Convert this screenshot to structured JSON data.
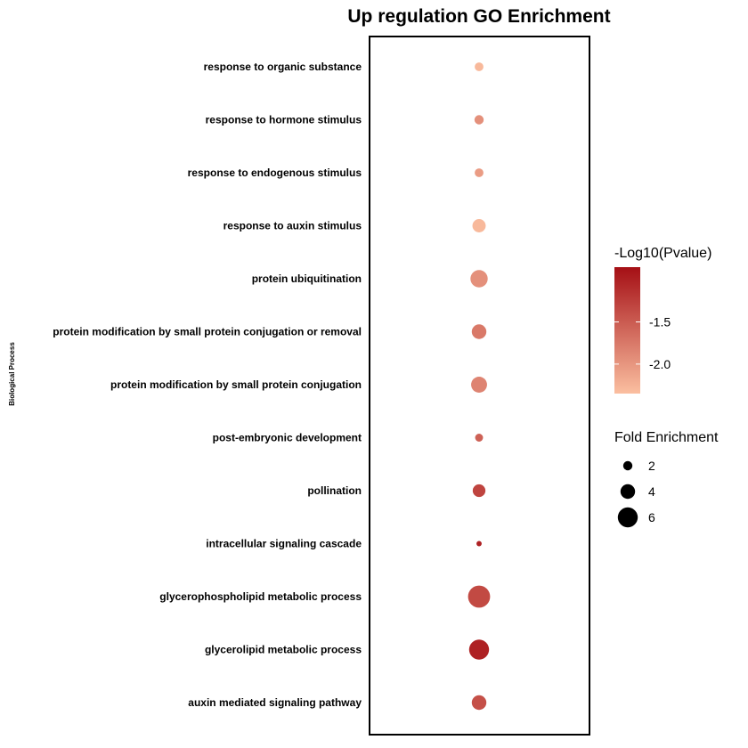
{
  "chart_data": {
    "type": "scatter",
    "title": "Up regulation GO Enrichment",
    "ylabel": "Biological Process",
    "xlabel": "",
    "categories": [
      "response to organic substance",
      "response to hormone stimulus",
      "response to endogenous stimulus",
      "response to auxin stimulus",
      "protein ubiquitination",
      "protein modification by small protein conjugation or removal",
      "protein modification by small protein conjugation",
      "post-embryonic development",
      "pollination",
      "intracellular signaling cascade",
      "glycerophospholipid metabolic process",
      "glycerolipid metabolic process",
      "auxin mediated signaling pathway"
    ],
    "fold_enrichment": [
      1.8,
      2.0,
      1.8,
      3.5,
      5.0,
      4.0,
      4.5,
      1.5,
      3.3,
      0.5,
      6.8,
      6.0,
      4.0
    ],
    "neg_log10_pvalue": [
      -2.3,
      -1.95,
      -2.05,
      -2.3,
      -1.95,
      -1.75,
      -1.85,
      -1.55,
      -1.3,
      -1.0,
      -1.35,
      -1.0,
      -1.4
    ],
    "color_legend": {
      "title": "-Log10(Pvalue)",
      "ticks": [
        -1.5,
        -2.0
      ],
      "tick_labels": [
        "-1.5",
        "-2.0"
      ],
      "range": [
        -2.35,
        -0.85
      ],
      "low_color": "#fbbfa0",
      "high_color": "#a50f15"
    },
    "size_legend": {
      "title": "Fold Enrichment",
      "values": [
        2,
        4,
        6
      ],
      "labels": [
        "2",
        "4",
        "6"
      ]
    },
    "grid": false,
    "legend_position": "right"
  }
}
